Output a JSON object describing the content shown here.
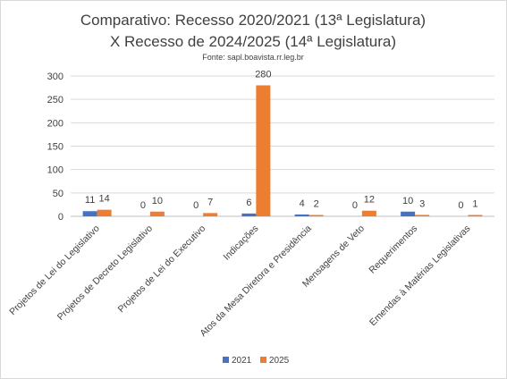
{
  "chart_data": {
    "type": "bar",
    "title_lines": [
      "Comparativo: Recesso 2020/2021 (13ª Legislatura)",
      "X Recesso de 2024/2025 (14ª Legislatura)"
    ],
    "subtitle": "Fonte: sapl.boavista.rr.leg.br",
    "categories": [
      "Projetos de Lei do Legislativo",
      "Projetos de Decreto Legislativo",
      "Projetos de Lei do Executivo",
      "Indicações",
      "Atos da Mesa Diretora e Presidência",
      "Mensagens de Veto",
      "Requerimentos",
      "Emendas à Matérias Legislativas"
    ],
    "series": [
      {
        "name": "2021",
        "color": "#4472c4",
        "values": [
          11,
          0,
          0,
          6,
          4,
          0,
          10,
          0
        ]
      },
      {
        "name": "2025",
        "color": "#ed7d31",
        "values": [
          14,
          10,
          7,
          280,
          2,
          12,
          3,
          1
        ]
      }
    ],
    "ylim": [
      0,
      300
    ],
    "yticks": [
      "0",
      "50",
      "100",
      "150",
      "200",
      "250",
      "300"
    ],
    "grid": true,
    "legend_position": "bottom"
  }
}
